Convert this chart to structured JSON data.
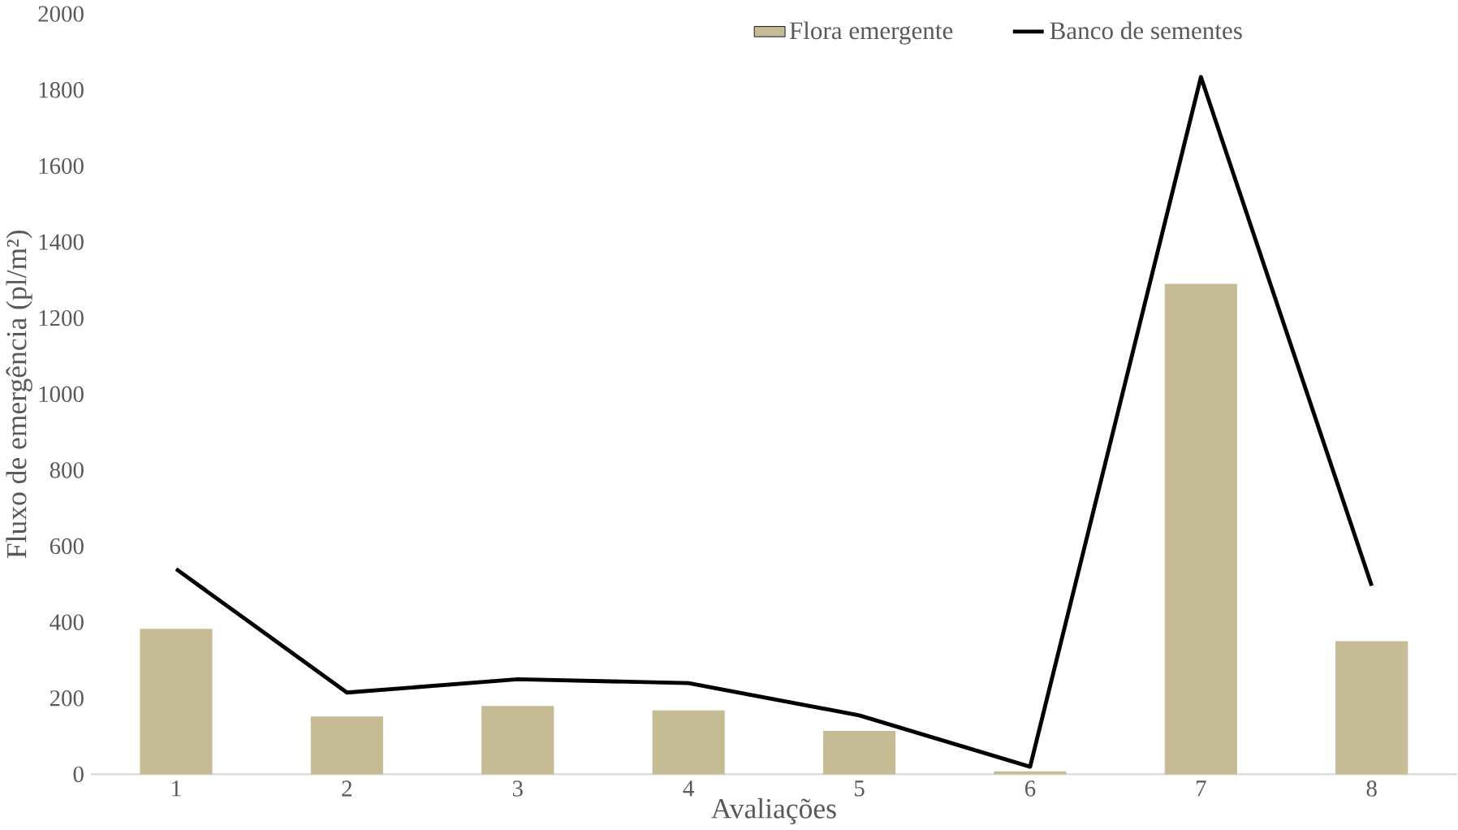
{
  "chart_data": {
    "type": "bar",
    "xlabel": "Avaliações",
    "ylabel": "Fluxo de emergência (pl/m²)",
    "categories": [
      "1",
      "2",
      "3",
      "4",
      "5",
      "6",
      "7",
      "8"
    ],
    "series": [
      {
        "name": "Flora emergente",
        "color": "#c5bc96",
        "values": [
          383,
          152,
          180,
          168,
          114,
          8,
          1290,
          350
        ]
      },
      {
        "name": "Banco de sementes",
        "type": "line",
        "color": "#000000",
        "values": [
          540,
          215,
          250,
          240,
          155,
          20,
          1834,
          496
        ]
      }
    ],
    "ylim": [
      0,
      2000
    ],
    "yticks": [
      0,
      200,
      400,
      600,
      800,
      1000,
      1200,
      1400,
      1600,
      1800,
      2000
    ],
    "grid": false,
    "legend": "top",
    "marker": "none"
  }
}
